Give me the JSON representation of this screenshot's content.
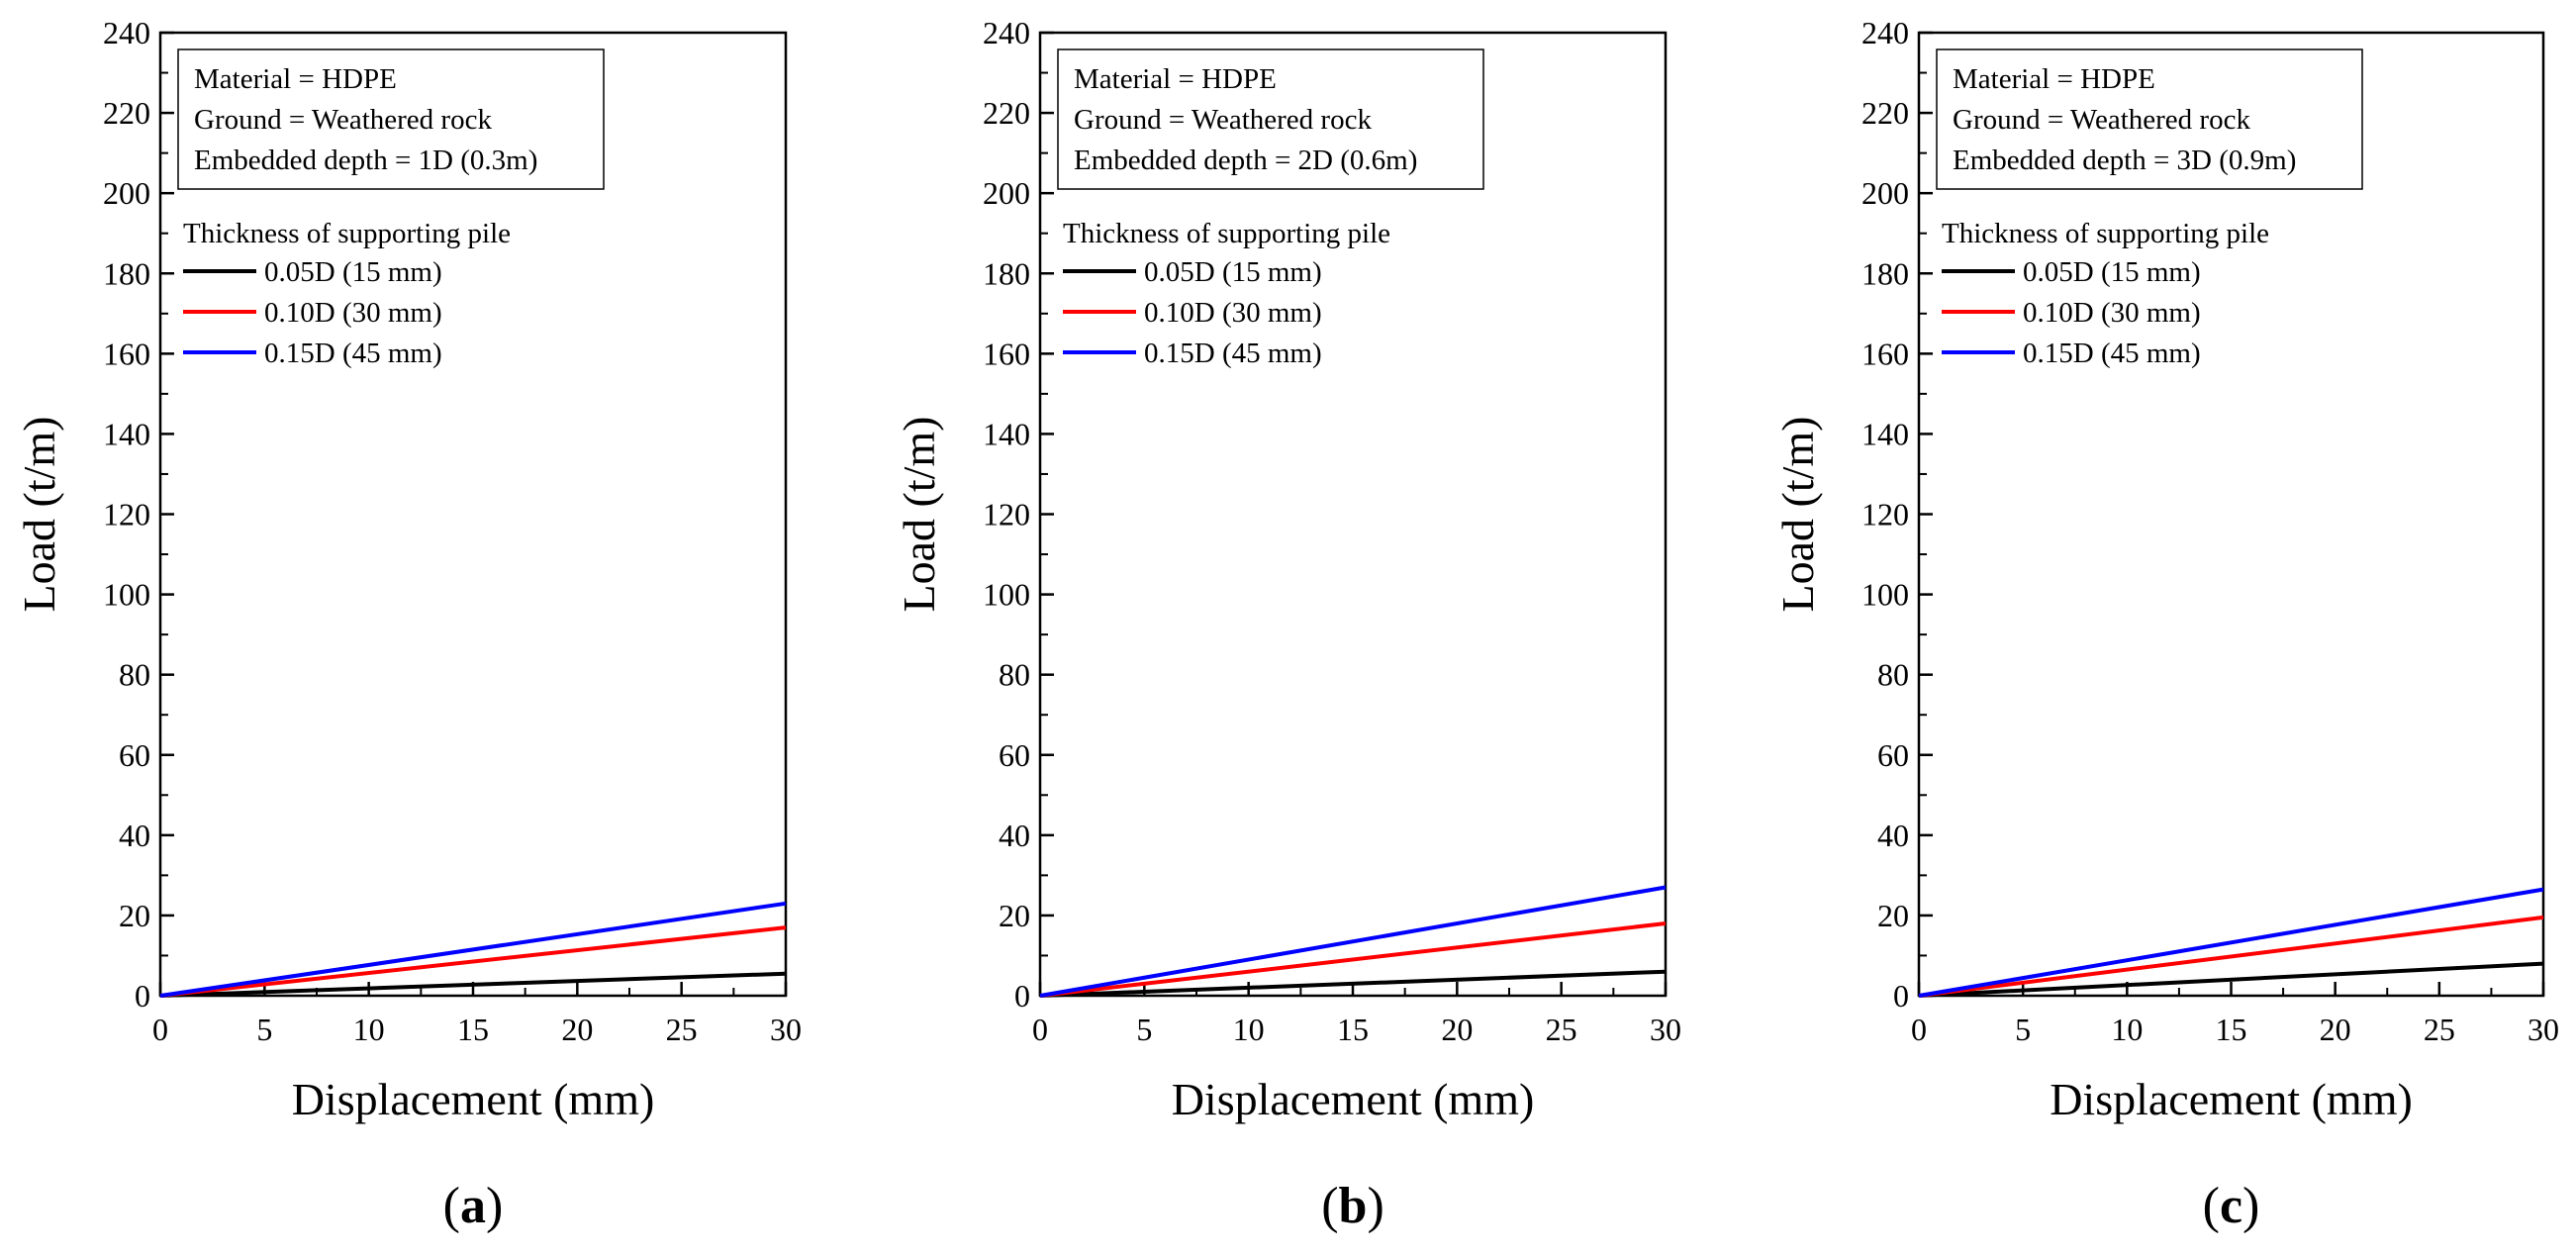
{
  "chart_data": [
    {
      "type": "line",
      "panel": "a",
      "xlabel": "Displacement (mm)",
      "ylabel": "Load (t/m)",
      "xlim": [
        0,
        30
      ],
      "ylim": [
        0,
        240
      ],
      "xticks": [
        0,
        5,
        10,
        15,
        20,
        25,
        30
      ],
      "yticks": [
        0,
        20,
        40,
        60,
        80,
        100,
        120,
        140,
        160,
        180,
        200,
        220,
        240
      ],
      "annotation": [
        "Material = HDPE",
        "Ground = Weathered rock",
        "Embedded depth = 1D (0.3m)"
      ],
      "legend_title": "Thickness of supporting pile",
      "series": [
        {
          "name": "0.05D (15 mm)",
          "color": "#000000",
          "x": [
            0,
            30
          ],
          "y": [
            0,
            5.5
          ]
        },
        {
          "name": "0.10D (30 mm)",
          "color": "#ff0000",
          "x": [
            0,
            30
          ],
          "y": [
            0,
            17
          ]
        },
        {
          "name": "0.15D (45 mm)",
          "color": "#0000ff",
          "x": [
            0,
            30
          ],
          "y": [
            0,
            23
          ]
        }
      ]
    },
    {
      "type": "line",
      "panel": "b",
      "xlabel": "Displacement (mm)",
      "ylabel": "Load (t/m)",
      "xlim": [
        0,
        30
      ],
      "ylim": [
        0,
        240
      ],
      "xticks": [
        0,
        5,
        10,
        15,
        20,
        25,
        30
      ],
      "yticks": [
        0,
        20,
        40,
        60,
        80,
        100,
        120,
        140,
        160,
        180,
        200,
        220,
        240
      ],
      "annotation": [
        "Material = HDPE",
        "Ground = Weathered rock",
        "Embedded depth = 2D (0.6m)"
      ],
      "legend_title": "Thickness of supporting pile",
      "series": [
        {
          "name": "0.05D (15 mm)",
          "color": "#000000",
          "x": [
            0,
            30
          ],
          "y": [
            0,
            6
          ]
        },
        {
          "name": "0.10D (30 mm)",
          "color": "#ff0000",
          "x": [
            0,
            30
          ],
          "y": [
            0,
            18
          ]
        },
        {
          "name": "0.15D (45 mm)",
          "color": "#0000ff",
          "x": [
            0,
            30
          ],
          "y": [
            0,
            27
          ]
        }
      ]
    },
    {
      "type": "line",
      "panel": "c",
      "xlabel": "Displacement (mm)",
      "ylabel": "Load (t/m)",
      "xlim": [
        0,
        30
      ],
      "ylim": [
        0,
        240
      ],
      "xticks": [
        0,
        5,
        10,
        15,
        20,
        25,
        30
      ],
      "yticks": [
        0,
        20,
        40,
        60,
        80,
        100,
        120,
        140,
        160,
        180,
        200,
        220,
        240
      ],
      "annotation": [
        "Material = HDPE",
        "Ground = Weathered rock",
        "Embedded depth = 3D (0.9m)"
      ],
      "legend_title": "Thickness of supporting pile",
      "series": [
        {
          "name": "0.05D (15 mm)",
          "color": "#000000",
          "x": [
            0,
            30
          ],
          "y": [
            0,
            8
          ]
        },
        {
          "name": "0.10D (30 mm)",
          "color": "#ff0000",
          "x": [
            0,
            30
          ],
          "y": [
            0,
            19.5
          ]
        },
        {
          "name": "0.15D (45 mm)",
          "color": "#0000ff",
          "x": [
            0,
            30
          ],
          "y": [
            0,
            26.5
          ]
        }
      ]
    }
  ]
}
